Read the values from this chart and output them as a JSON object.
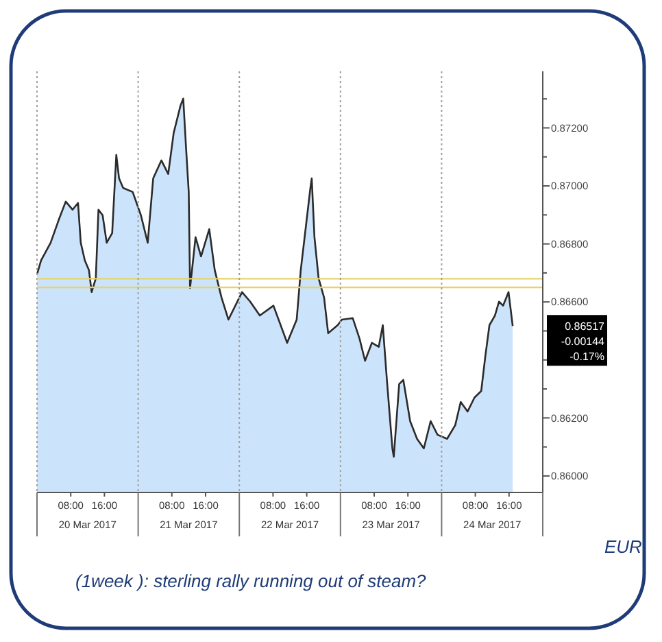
{
  "chart_data": {
    "type": "area",
    "title": "EUR",
    "subtitle": "(1week ): sterling rally running out of steam?",
    "x": [
      "2017-03-20T00:00",
      "2017-03-20T00:58",
      "2017-03-20T03:14",
      "2017-03-20T05:11",
      "2017-03-20T06:49",
      "2017-03-20T08:26",
      "2017-03-20T09:44",
      "2017-03-20T10:23",
      "2017-03-20T11:21",
      "2017-03-20T12:19",
      "2017-03-20T12:58",
      "2017-03-20T13:57",
      "2017-03-20T14:35",
      "2017-03-20T15:34",
      "2017-03-20T16:32",
      "2017-03-20T17:50",
      "2017-03-20T18:49",
      "2017-03-20T19:28",
      "2017-03-20T20:26",
      "2017-03-20T22:42",
      "2017-03-21T00:39",
      "2017-03-21T02:16",
      "2017-03-21T03:34",
      "2017-03-21T05:31",
      "2017-03-21T07:08",
      "2017-03-21T08:26",
      "2017-03-21T10:03",
      "2017-03-21T10:42",
      "2017-03-21T11:21",
      "2017-03-21T12:00",
      "2017-03-21T12:19",
      "2017-03-21T13:37",
      "2017-03-21T14:55",
      "2017-03-21T16:52",
      "2017-03-21T18:10",
      "2017-03-21T19:47",
      "2017-03-21T21:25",
      "2017-03-22T00:39",
      "2017-03-22T02:35",
      "2017-03-22T04:52",
      "2017-03-22T08:06",
      "2017-03-22T11:21",
      "2017-03-22T13:37",
      "2017-03-22T14:35",
      "2017-03-22T16:52",
      "2017-03-22T17:11",
      "2017-03-22T17:50",
      "2017-03-22T18:49",
      "2017-03-22T20:07",
      "2017-03-22T21:05",
      "2017-03-22T23:21",
      "2017-03-23T00:19",
      "2017-03-23T02:55",
      "2017-03-23T04:32",
      "2017-03-23T05:50",
      "2017-03-23T07:28",
      "2017-03-23T09:05",
      "2017-03-23T10:03",
      "2017-03-23T11:01",
      "2017-03-23T12:19",
      "2017-03-23T12:39",
      "2017-03-23T13:56",
      "2017-03-23T14:55",
      "2017-03-23T16:32",
      "2017-03-23T18:10",
      "2017-03-23T19:47",
      "2017-03-23T21:24",
      "2017-03-23T23:02",
      "2017-03-24T01:18",
      "2017-03-24T03:14",
      "2017-03-24T04:32",
      "2017-03-24T06:10",
      "2017-03-24T07:47",
      "2017-03-24T09:24",
      "2017-03-24T10:22",
      "2017-03-24T11:21",
      "2017-03-24T12:39",
      "2017-03-24T13:37",
      "2017-03-24T14:35",
      "2017-03-24T15:53",
      "2017-03-24T16:52"
    ],
    "series": [
      {
        "color": "#2b2b2b",
        "values": [
          0.86695,
          0.86743,
          0.86804,
          0.86884,
          0.86946,
          0.86918,
          0.86941,
          0.86804,
          0.86743,
          0.8671,
          0.86634,
          0.86681,
          0.86918,
          0.86899,
          0.86804,
          0.86837,
          0.87107,
          0.87026,
          0.86993,
          0.86979,
          0.86899,
          0.86804,
          0.87026,
          0.87088,
          0.87041,
          0.87183,
          0.87277,
          0.87301,
          0.87135,
          0.86979,
          0.86648,
          0.86823,
          0.86757,
          0.86851,
          0.8671,
          0.86615,
          0.86539,
          0.86634,
          0.86601,
          0.86553,
          0.86587,
          0.86459,
          0.86539,
          0.8671,
          0.86993,
          0.87026,
          0.86823,
          0.86681,
          0.86615,
          0.86492,
          0.8652,
          0.86539,
          0.86544,
          0.86473,
          0.86397,
          0.86459,
          0.86445,
          0.8652,
          0.86331,
          0.86095,
          0.86066,
          0.86317,
          0.86331,
          0.86189,
          0.86128,
          0.86095,
          0.86189,
          0.86142,
          0.86128,
          0.86175,
          0.86255,
          0.86222,
          0.8627,
          0.86293,
          0.86412,
          0.8652,
          0.86553,
          0.86601,
          0.86587,
          0.86634,
          0.86517
        ]
      }
    ],
    "xlim": [
      "2017-03-20T00:00",
      "2017-03-25T00:00"
    ],
    "xticks": [
      {
        "value": "2017-03-20T08:00",
        "label": "08:00"
      },
      {
        "value": "2017-03-20T16:00",
        "label": "16:00"
      },
      {
        "value": "2017-03-21T08:00",
        "label": "08:00"
      },
      {
        "value": "2017-03-21T16:00",
        "label": "16:00"
      },
      {
        "value": "2017-03-22T08:00",
        "label": "08:00"
      },
      {
        "value": "2017-03-22T16:00",
        "label": "16:00"
      },
      {
        "value": "2017-03-23T08:00",
        "label": "08:00"
      },
      {
        "value": "2017-03-23T16:00",
        "label": "16:00"
      },
      {
        "value": "2017-03-24T08:00",
        "label": "08:00"
      },
      {
        "value": "2017-03-24T16:00",
        "label": "16:00"
      }
    ],
    "x2lim": [
      "2017-03-20T00:00",
      "2017-03-25T00:00"
    ],
    "x2ticks": [
      {
        "value": "2017-03-20T00:00",
        "label": null
      },
      {
        "value": "2017-03-20T12:00",
        "label": "20 Mar 2017"
      },
      {
        "value": "2017-03-21T00:00",
        "label": null
      },
      {
        "value": "2017-03-21T12:00",
        "label": "21 Mar 2017"
      },
      {
        "value": "2017-03-22T00:00",
        "label": null
      },
      {
        "value": "2017-03-22T12:00",
        "label": "22 Mar 2017"
      },
      {
        "value": "2017-03-23T00:00",
        "label": null
      },
      {
        "value": "2017-03-23T12:00",
        "label": "23 Mar 2017"
      },
      {
        "value": "2017-03-24T00:00",
        "label": null
      },
      {
        "value": "2017-03-24T12:00",
        "label": "24 Mar 2017"
      },
      {
        "value": "2017-03-25T00:00",
        "label": null
      }
    ],
    "ylim": [
      0.85943,
      0.87395
    ],
    "yticks": [
      {
        "value": 0.86,
        "label": "0.86000"
      },
      {
        "value": 0.861,
        "label": null
      },
      {
        "value": 0.862,
        "label": "0.86200"
      },
      {
        "value": 0.863,
        "label": null
      },
      {
        "value": 0.864,
        "label": null
      },
      {
        "value": 0.865,
        "label": null
      },
      {
        "value": 0.866,
        "label": "0.86600"
      },
      {
        "value": 0.867,
        "label": null
      },
      {
        "value": 0.868,
        "label": "0.86800"
      },
      {
        "value": 0.869,
        "label": null
      },
      {
        "value": 0.87,
        "label": "0.87000"
      },
      {
        "value": 0.871,
        "label": null
      },
      {
        "value": 0.872,
        "label": "0.87200"
      },
      {
        "value": 0.873,
        "label": null
      }
    ],
    "ref_lines": [
      {
        "axis": "y",
        "value": 0.8668,
        "color": "#e6d36a",
        "line_style": "solid"
      },
      {
        "axis": "y",
        "value": 0.8665,
        "color": "#e6d36a",
        "line_style": "solid"
      },
      {
        "axis": "x",
        "value": "2017-03-21T00:00",
        "color": "#a0a0a0",
        "line_style": "dotted"
      },
      {
        "axis": "x",
        "value": "2017-03-22T00:00",
        "color": "#a0a0a0",
        "line_style": "dotted"
      },
      {
        "axis": "x",
        "value": "2017-03-23T00:00",
        "color": "#a0a0a0",
        "line_style": "dotted"
      },
      {
        "axis": "x",
        "value": "2017-03-24T00:00",
        "color": "#a0a0a0",
        "line_style": "dotted"
      }
    ],
    "annotations": [
      "0.86517",
      "-0.00144",
      "-0.17%"
    ]
  }
}
